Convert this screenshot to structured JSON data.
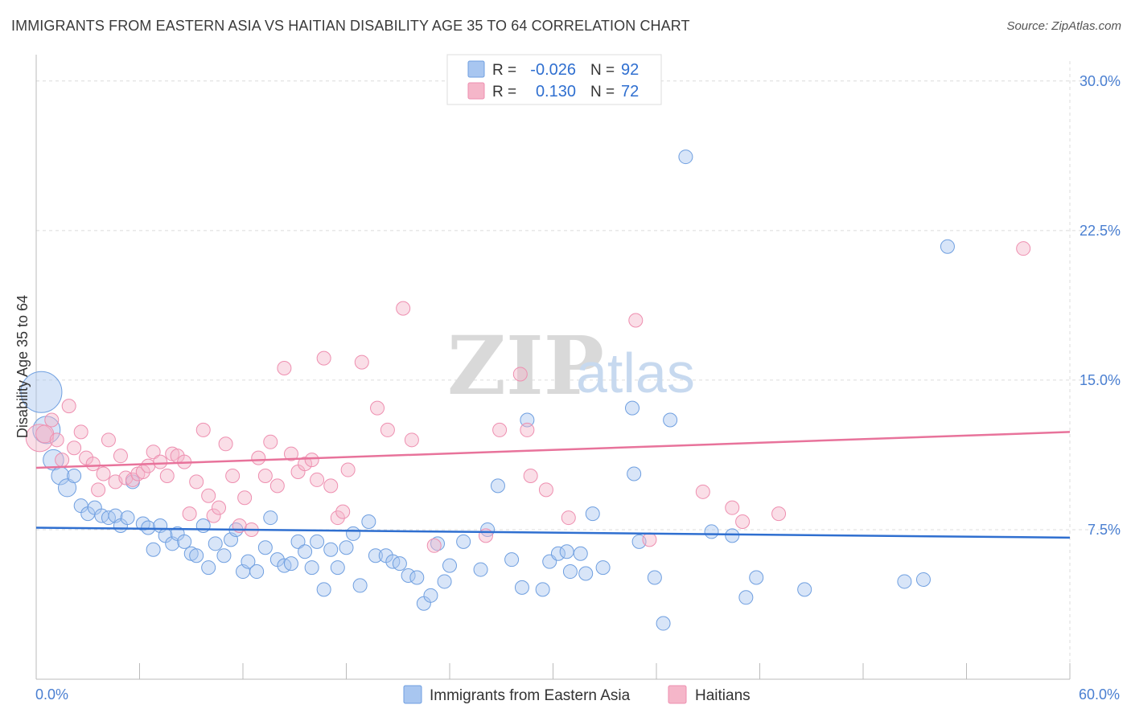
{
  "title": "IMMIGRANTS FROM EASTERN ASIA VS HAITIAN DISABILITY AGE 35 TO 64 CORRELATION CHART",
  "source": "Source: ZipAtlas.com",
  "watermark": {
    "zip": "ZIP",
    "atlas": "atlas"
  },
  "legend": {
    "rows": [
      {
        "r_label": "R =",
        "r_value": "-0.026",
        "n_label": "N =",
        "n_value": "92",
        "color": "#a8c6f0"
      },
      {
        "r_label": "R =",
        "r_value": "0.130",
        "n_label": "N =",
        "n_value": "72",
        "color": "#f5b6c9"
      }
    ]
  },
  "bottom_legend": [
    {
      "label": "Immigrants from Eastern Asia",
      "color": "#a8c6f0"
    },
    {
      "label": "Haitians",
      "color": "#f5b6c9"
    }
  ],
  "chart_data": {
    "type": "scatter",
    "title": "IMMIGRANTS FROM EASTERN ASIA VS HAITIAN DISABILITY AGE 35 TO 64 CORRELATION CHART",
    "xlabel": "",
    "ylabel": "Disability Age 35 to 64",
    "xlim": [
      0,
      60
    ],
    "ylim": [
      0,
      31
    ],
    "x_tick_labels": [
      {
        "value": 0,
        "label": "0.0%"
      },
      {
        "value": 60,
        "label": "60.0%"
      }
    ],
    "y_tick_labels": [
      {
        "value": 7.5,
        "label": "7.5%"
      },
      {
        "value": 15.0,
        "label": "15.0%"
      },
      {
        "value": 22.5,
        "label": "22.5%"
      },
      {
        "value": 30.0,
        "label": "30.0%"
      }
    ],
    "grid": true,
    "series": [
      {
        "name": "Immigrants from Eastern Asia",
        "color": "#a8c6f0",
        "stroke": "#6f9fe0",
        "trend_color": "#2f6fd0",
        "trend": {
          "x": [
            0,
            60
          ],
          "y": [
            7.6,
            7.1
          ]
        },
        "points": [
          [
            0.3,
            14.4,
            3
          ],
          [
            0.6,
            12.5,
            2
          ],
          [
            1.0,
            11.0,
            1.5
          ],
          [
            1.4,
            10.2,
            1.3
          ],
          [
            1.8,
            9.6,
            1.3
          ],
          [
            2.2,
            10.2,
            1
          ],
          [
            2.6,
            8.7,
            1
          ],
          [
            3.0,
            8.3,
            1
          ],
          [
            3.4,
            8.6,
            1
          ],
          [
            3.8,
            8.2,
            1
          ],
          [
            4.2,
            8.1,
            1
          ],
          [
            4.6,
            8.2,
            1
          ],
          [
            4.9,
            7.7,
            1
          ],
          [
            5.3,
            8.1,
            1
          ],
          [
            5.6,
            9.9,
            1
          ],
          [
            6.2,
            7.8,
            1
          ],
          [
            6.5,
            7.6,
            1
          ],
          [
            6.8,
            6.5,
            1
          ],
          [
            7.2,
            7.7,
            1
          ],
          [
            7.5,
            7.2,
            1
          ],
          [
            7.9,
            6.8,
            1
          ],
          [
            8.2,
            7.3,
            1
          ],
          [
            8.6,
            6.9,
            1
          ],
          [
            9.0,
            6.3,
            1
          ],
          [
            9.3,
            6.2,
            1
          ],
          [
            9.7,
            7.7,
            1
          ],
          [
            10.0,
            5.6,
            1
          ],
          [
            10.4,
            6.8,
            1
          ],
          [
            10.9,
            6.2,
            1
          ],
          [
            11.3,
            7.0,
            1
          ],
          [
            11.6,
            7.5,
            1
          ],
          [
            12.0,
            5.4,
            1
          ],
          [
            12.3,
            5.9,
            1
          ],
          [
            12.8,
            5.4,
            1
          ],
          [
            13.3,
            6.6,
            1
          ],
          [
            13.6,
            8.1,
            1
          ],
          [
            14.0,
            6.0,
            1
          ],
          [
            14.4,
            5.7,
            1
          ],
          [
            14.8,
            5.8,
            1
          ],
          [
            15.2,
            6.9,
            1
          ],
          [
            15.6,
            6.4,
            1
          ],
          [
            16.0,
            5.6,
            1
          ],
          [
            16.3,
            6.9,
            1
          ],
          [
            16.7,
            4.5,
            1
          ],
          [
            17.1,
            6.5,
            1
          ],
          [
            17.5,
            5.6,
            1
          ],
          [
            18.0,
            6.6,
            1
          ],
          [
            18.4,
            7.3,
            1
          ],
          [
            18.8,
            4.7,
            1
          ],
          [
            19.3,
            7.9,
            1
          ],
          [
            19.7,
            6.2,
            1
          ],
          [
            20.3,
            6.2,
            1
          ],
          [
            20.7,
            5.9,
            1
          ],
          [
            21.1,
            5.8,
            1
          ],
          [
            21.6,
            5.2,
            1
          ],
          [
            22.1,
            5.1,
            1
          ],
          [
            22.5,
            3.8,
            1
          ],
          [
            22.9,
            4.2,
            1
          ],
          [
            23.3,
            6.8,
            1
          ],
          [
            23.7,
            4.9,
            1
          ],
          [
            24.0,
            5.7,
            1
          ],
          [
            24.8,
            6.9,
            1
          ],
          [
            25.8,
            5.5,
            1
          ],
          [
            26.2,
            7.5,
            1
          ],
          [
            26.8,
            9.7,
            1
          ],
          [
            27.6,
            6.0,
            1
          ],
          [
            28.2,
            4.6,
            1
          ],
          [
            28.5,
            13.0,
            1
          ],
          [
            29.4,
            4.5,
            1
          ],
          [
            29.8,
            5.9,
            1
          ],
          [
            30.3,
            6.3,
            1
          ],
          [
            30.8,
            6.4,
            1
          ],
          [
            31.0,
            5.4,
            1
          ],
          [
            31.6,
            6.3,
            1
          ],
          [
            31.9,
            5.3,
            1
          ],
          [
            32.3,
            8.3,
            1
          ],
          [
            32.9,
            5.6,
            1
          ],
          [
            34.6,
            13.6,
            1
          ],
          [
            34.7,
            10.3,
            1
          ],
          [
            35.0,
            6.9,
            1
          ],
          [
            35.9,
            5.1,
            1
          ],
          [
            36.4,
            2.8,
            1
          ],
          [
            36.8,
            13.0,
            1
          ],
          [
            37.7,
            26.2,
            1
          ],
          [
            39.2,
            7.4,
            1
          ],
          [
            40.4,
            7.2,
            1
          ],
          [
            41.2,
            4.1,
            1
          ],
          [
            41.8,
            5.1,
            1
          ],
          [
            44.6,
            4.5,
            1
          ],
          [
            50.4,
            4.9,
            1
          ],
          [
            51.5,
            5.0,
            1
          ],
          [
            52.9,
            21.7,
            1
          ]
        ]
      },
      {
        "name": "Haitians",
        "color": "#f5b6c9",
        "stroke": "#ee8fb0",
        "trend_color": "#e8739b",
        "trend": {
          "x": [
            0,
            60
          ],
          "y": [
            10.6,
            12.4
          ]
        },
        "points": [
          [
            0.2,
            12.1,
            2
          ],
          [
            0.5,
            12.3,
            1.3
          ],
          [
            0.9,
            13.0,
            1
          ],
          [
            1.2,
            12.0,
            1
          ],
          [
            1.5,
            11.0,
            1
          ],
          [
            1.9,
            13.7,
            1
          ],
          [
            2.2,
            11.6,
            1
          ],
          [
            2.6,
            12.4,
            1
          ],
          [
            2.9,
            11.1,
            1
          ],
          [
            3.3,
            10.8,
            1
          ],
          [
            3.6,
            9.5,
            1
          ],
          [
            3.9,
            10.3,
            1
          ],
          [
            4.2,
            12.0,
            1
          ],
          [
            4.6,
            9.9,
            1
          ],
          [
            4.9,
            11.2,
            1
          ],
          [
            5.2,
            10.1,
            1
          ],
          [
            5.6,
            10.0,
            1
          ],
          [
            5.9,
            10.3,
            1
          ],
          [
            6.2,
            10.4,
            1
          ],
          [
            6.5,
            10.7,
            1
          ],
          [
            6.8,
            11.4,
            1
          ],
          [
            7.2,
            10.9,
            1
          ],
          [
            7.6,
            10.2,
            1
          ],
          [
            7.9,
            11.3,
            1
          ],
          [
            8.2,
            11.2,
            1
          ],
          [
            8.6,
            10.9,
            1
          ],
          [
            8.9,
            8.3,
            1
          ],
          [
            9.3,
            9.9,
            1
          ],
          [
            9.7,
            12.5,
            1
          ],
          [
            10.0,
            9.2,
            1
          ],
          [
            10.3,
            8.2,
            1
          ],
          [
            10.6,
            8.6,
            1
          ],
          [
            11.0,
            11.8,
            1
          ],
          [
            11.4,
            10.2,
            1
          ],
          [
            11.8,
            7.7,
            1
          ],
          [
            12.1,
            9.1,
            1
          ],
          [
            12.5,
            7.5,
            1
          ],
          [
            12.9,
            11.1,
            1
          ],
          [
            13.3,
            10.2,
            1
          ],
          [
            13.6,
            11.9,
            1
          ],
          [
            14.0,
            9.7,
            1
          ],
          [
            14.4,
            15.6,
            1
          ],
          [
            14.8,
            11.3,
            1
          ],
          [
            15.2,
            10.4,
            1
          ],
          [
            15.6,
            10.8,
            1
          ],
          [
            16.0,
            11.0,
            1
          ],
          [
            16.3,
            10.0,
            1
          ],
          [
            16.7,
            16.1,
            1
          ],
          [
            17.1,
            9.7,
            1
          ],
          [
            17.5,
            8.1,
            1
          ],
          [
            17.8,
            8.4,
            1
          ],
          [
            18.1,
            10.5,
            1
          ],
          [
            18.9,
            15.9,
            1
          ],
          [
            19.8,
            13.6,
            1
          ],
          [
            20.4,
            12.5,
            1
          ],
          [
            21.3,
            18.6,
            1
          ],
          [
            21.8,
            12.0,
            1
          ],
          [
            23.1,
            6.7,
            1
          ],
          [
            26.1,
            7.2,
            1
          ],
          [
            26.9,
            12.5,
            1
          ],
          [
            28.1,
            15.3,
            1
          ],
          [
            28.5,
            12.5,
            1
          ],
          [
            28.7,
            10.2,
            1
          ],
          [
            29.6,
            9.5,
            1
          ],
          [
            30.9,
            8.1,
            1
          ],
          [
            34.8,
            18.0,
            1
          ],
          [
            35.6,
            7.0,
            1
          ],
          [
            38.7,
            9.4,
            1
          ],
          [
            40.4,
            8.6,
            1
          ],
          [
            41.0,
            7.9,
            1
          ],
          [
            43.1,
            8.3,
            1
          ],
          [
            57.3,
            21.6,
            1
          ]
        ]
      }
    ]
  }
}
